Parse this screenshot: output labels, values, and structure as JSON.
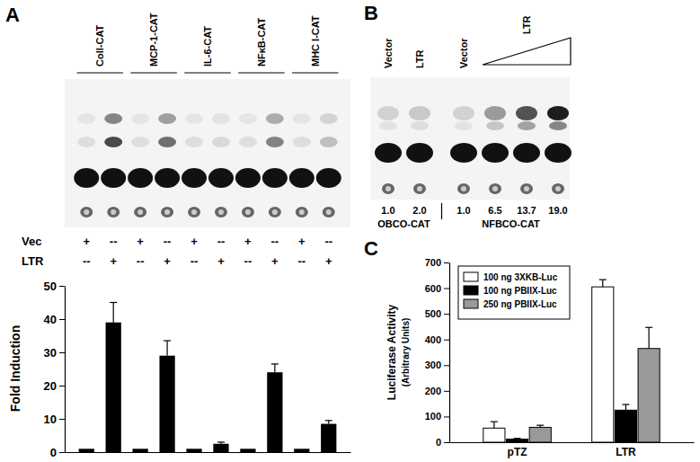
{
  "chart_data": [
    {
      "type": "bar",
      "title": "A",
      "y_label": "Fold Induction",
      "categories": [
        "Coll-CAT",
        "MCP-1-CAT",
        "IL-6-CAT",
        "NFκB-CAT",
        "MHC I-CAT"
      ],
      "series": [
        {
          "name": "Vec",
          "color": "#000000",
          "values": [
            1,
            1,
            1,
            1,
            1
          ],
          "lane_marks": [
            "+",
            "--",
            "+",
            "--",
            "+",
            "--",
            "+",
            "--",
            "+",
            "--"
          ]
        },
        {
          "name": "LTR",
          "color": "#000000",
          "values": [
            39,
            29,
            2.5,
            24,
            8.5
          ],
          "errors": [
            6,
            4.5,
            0.5,
            2.5,
            1
          ],
          "lane_marks": [
            "--",
            "+",
            "--",
            "+",
            "--",
            "+",
            "--",
            "+",
            "--",
            "+"
          ]
        }
      ],
      "ylim": [
        0,
        50
      ],
      "yticks": [
        0,
        10,
        20,
        30,
        40,
        50
      ],
      "tick_labels": "y"
    },
    {
      "type": "blot",
      "title": "B",
      "series": [
        {
          "name": "OBCO-CAT",
          "categories": [
            "Vector",
            "LTR"
          ],
          "values": [
            1.0,
            2.0
          ],
          "value_labels": [
            "1.0",
            "2.0"
          ]
        },
        {
          "name": "NFBCO-CAT",
          "categories": [
            "Vector",
            "LTR",
            null,
            null
          ],
          "values": [
            1.0,
            6.5,
            13.7,
            19.0
          ],
          "value_labels": [
            "1.0",
            "6.5",
            "13.7",
            "19.0"
          ]
        }
      ]
    },
    {
      "type": "bar",
      "title": "C",
      "y_label": "Luciferase Activity",
      "y_sublabel": "(Arbitrary Units)",
      "categories": [
        "pTZ",
        "LTR"
      ],
      "series": [
        {
          "name": "100 ng 3XKB-Luc",
          "color": "#ffffff",
          "values": [
            55,
            605
          ],
          "errors": [
            25,
            28
          ]
        },
        {
          "name": "100 ng PBIIX-Luc",
          "color": "#000000",
          "values": [
            12,
            125
          ],
          "errors": [
            3,
            22
          ]
        },
        {
          "name": "250 ng PBIIX-Luc",
          "color": "#999999",
          "values": [
            58,
            365
          ],
          "errors": [
            8,
            82
          ]
        }
      ],
      "ylim": [
        0,
        700
      ],
      "yticks": [
        0,
        100,
        200,
        300,
        400,
        500,
        600,
        700
      ],
      "legend": "upper left"
    }
  ]
}
